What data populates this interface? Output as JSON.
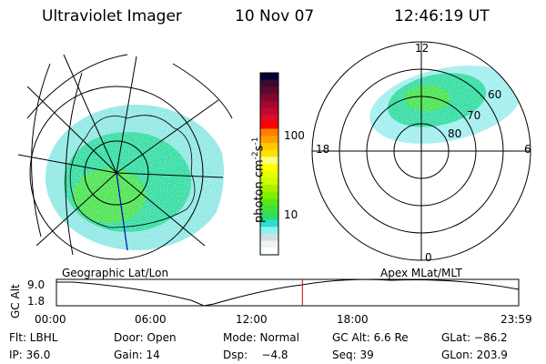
{
  "header": {
    "instrument": "Ultraviolet Imager",
    "date": "10 Nov 07",
    "time": "12:46:19 UT"
  },
  "colorbar": {
    "label": "photon cm",
    "label_sup1": "-2",
    "label_s": "s",
    "label_sup2": "-1",
    "ticks": [
      "100",
      "10"
    ],
    "colors": [
      "#000033",
      "#3a0a32",
      "#5c0a33",
      "#80082e",
      "#a5082d",
      "#c20830",
      "#e00a2a",
      "#ff0000",
      "#ff7f00",
      "#ffa000",
      "#ffc800",
      "#ffe000",
      "#ffff80",
      "#ffff00",
      "#e8ff00",
      "#ccff00",
      "#a8f000",
      "#80f000",
      "#58e818",
      "#40e040",
      "#30dc68",
      "#28e0d0",
      "#90f0f8",
      "#d0e0e0",
      "#eef4ee",
      "#ffffff"
    ]
  },
  "maps": {
    "left_label": "Geographic Lat/Lon",
    "right_label": "Apex MLat/MLT",
    "mlt_labels": {
      "top": "12",
      "left": "18",
      "right": "6",
      "bottom": "0"
    },
    "mlat_labels": [
      "60",
      "70",
      "80"
    ]
  },
  "altitude_plot": {
    "ylabel": "GC Alt",
    "yticks": [
      "9.0",
      "1.8"
    ],
    "xticks": [
      "00:00",
      "06:00",
      "12:00",
      "18:00",
      "23:59"
    ],
    "current_time_hours": 12.77,
    "marker_color": "#cc0000"
  },
  "info": {
    "row1": [
      "Flt: LBHL",
      "Door: Open",
      "Mode: Normal",
      "GC Alt: 6.6 Re",
      "GLat: −86.2"
    ],
    "row2": [
      "IP: 36.0",
      "Gain: 14",
      "Dsp:    −4.8",
      "Seq: 39",
      "GLon: 203.9"
    ]
  }
}
